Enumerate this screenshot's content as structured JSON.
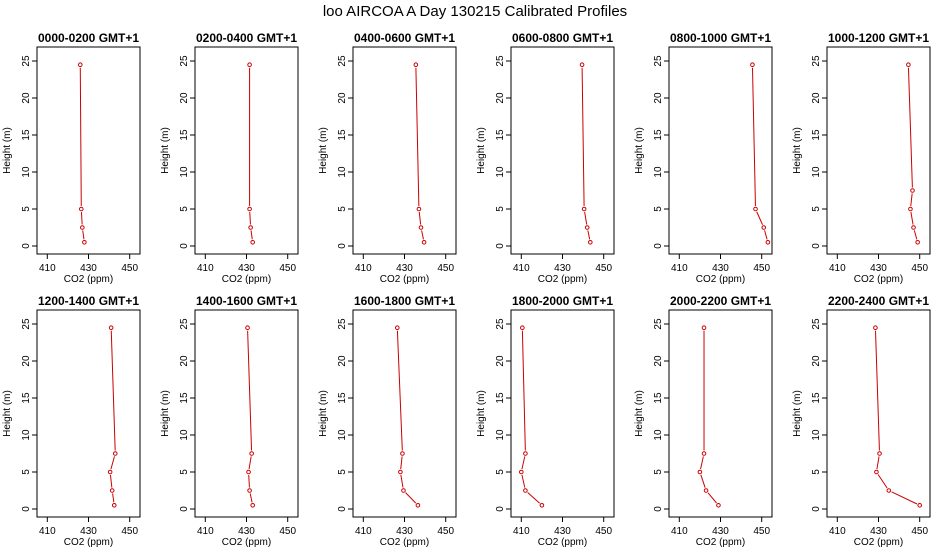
{
  "title": "loo AIRCOA A  Day 130215  Calibrated Profiles",
  "colors": {
    "series": "#cc0000",
    "axis": "#000000",
    "background": "#ffffff"
  },
  "chart_data": [
    {
      "type": "line",
      "title": "0000-0200 GMT+1",
      "xlabel": "CO2 (ppm)",
      "ylabel": "Height (m)",
      "xlim": [
        405,
        455
      ],
      "ylim": [
        0,
        25
      ],
      "xticks": [
        410,
        430,
        450
      ],
      "yticks": [
        0,
        5,
        10,
        15,
        20,
        25
      ],
      "points": [
        [
          428,
          0.5
        ],
        [
          427,
          2.5
        ],
        [
          426.5,
          5
        ],
        [
          426,
          24.5
        ]
      ]
    },
    {
      "type": "line",
      "title": "0200-0400 GMT+1",
      "xlabel": "CO2 (ppm)",
      "ylabel": "Height (m)",
      "xlim": [
        405,
        455
      ],
      "ylim": [
        0,
        25
      ],
      "xticks": [
        410,
        430,
        450
      ],
      "yticks": [
        0,
        5,
        10,
        15,
        20,
        25
      ],
      "points": [
        [
          433,
          0.5
        ],
        [
          432,
          2.5
        ],
        [
          431.5,
          5
        ],
        [
          431.5,
          24.5
        ]
      ]
    },
    {
      "type": "line",
      "title": "0400-0600 GMT+1",
      "xlabel": "CO2 (ppm)",
      "ylabel": "Height (m)",
      "xlim": [
        405,
        455
      ],
      "ylim": [
        0,
        25
      ],
      "xticks": [
        410,
        430,
        450
      ],
      "yticks": [
        0,
        5,
        10,
        15,
        20,
        25
      ],
      "points": [
        [
          439.5,
          0.5
        ],
        [
          438,
          2.5
        ],
        [
          437,
          5
        ],
        [
          435.5,
          24.5
        ]
      ]
    },
    {
      "type": "line",
      "title": "0600-0800 GMT+1",
      "xlabel": "CO2 (ppm)",
      "ylabel": "Height (m)",
      "xlim": [
        405,
        455
      ],
      "ylim": [
        0,
        25
      ],
      "xticks": [
        410,
        430,
        450
      ],
      "yticks": [
        0,
        5,
        10,
        15,
        20,
        25
      ],
      "points": [
        [
          443.5,
          0.5
        ],
        [
          442,
          2.5
        ],
        [
          440.5,
          5
        ],
        [
          439.5,
          24.5
        ]
      ]
    },
    {
      "type": "line",
      "title": "0800-1000 GMT+1",
      "xlabel": "CO2 (ppm)",
      "ylabel": "Height (m)",
      "xlim": [
        405,
        455
      ],
      "ylim": [
        0,
        25
      ],
      "xticks": [
        410,
        430,
        450
      ],
      "yticks": [
        0,
        5,
        10,
        15,
        20,
        25
      ],
      "points": [
        [
          453,
          0.5
        ],
        [
          451,
          2.5
        ],
        [
          447,
          5
        ],
        [
          445.5,
          24.5
        ]
      ]
    },
    {
      "type": "line",
      "title": "1000-1200 GMT+1",
      "xlabel": "CO2 (ppm)",
      "ylabel": "Height (m)",
      "xlim": [
        405,
        455
      ],
      "ylim": [
        0,
        25
      ],
      "xticks": [
        410,
        430,
        450
      ],
      "yticks": [
        0,
        5,
        10,
        15,
        20,
        25
      ],
      "points": [
        [
          449,
          0.5
        ],
        [
          447,
          2.5
        ],
        [
          445.5,
          5
        ],
        [
          446.5,
          7.5
        ],
        [
          444.5,
          24.5
        ]
      ]
    },
    {
      "type": "line",
      "title": "1200-1400 GMT+1",
      "xlabel": "CO2 (ppm)",
      "ylabel": "Height (m)",
      "xlim": [
        405,
        455
      ],
      "ylim": [
        0,
        25
      ],
      "xticks": [
        410,
        430,
        450
      ],
      "yticks": [
        0,
        5,
        10,
        15,
        20,
        25
      ],
      "points": [
        [
          442.5,
          0.5
        ],
        [
          441.5,
          2.5
        ],
        [
          440.5,
          5
        ],
        [
          443,
          7.5
        ],
        [
          441,
          24.5
        ]
      ]
    },
    {
      "type": "line",
      "title": "1400-1600 GMT+1",
      "xlabel": "CO2 (ppm)",
      "ylabel": "Height (m)",
      "xlim": [
        405,
        455
      ],
      "ylim": [
        0,
        25
      ],
      "xticks": [
        410,
        430,
        450
      ],
      "yticks": [
        0,
        5,
        10,
        15,
        20,
        25
      ],
      "points": [
        [
          433,
          0.5
        ],
        [
          431.5,
          2.5
        ],
        [
          431,
          5
        ],
        [
          432.5,
          7.5
        ],
        [
          430.5,
          24.5
        ]
      ]
    },
    {
      "type": "line",
      "title": "1600-1800 GMT+1",
      "xlabel": "CO2 (ppm)",
      "ylabel": "Height (m)",
      "xlim": [
        405,
        455
      ],
      "ylim": [
        0,
        25
      ],
      "xticks": [
        410,
        430,
        450
      ],
      "yticks": [
        0,
        5,
        10,
        15,
        20,
        25
      ],
      "points": [
        [
          436.5,
          0.5
        ],
        [
          429.5,
          2.5
        ],
        [
          428,
          5
        ],
        [
          429,
          7.5
        ],
        [
          426.5,
          24.5
        ]
      ]
    },
    {
      "type": "line",
      "title": "1800-2000 GMT+1",
      "xlabel": "CO2 (ppm)",
      "ylabel": "Height (m)",
      "xlim": [
        405,
        455
      ],
      "ylim": [
        0,
        25
      ],
      "xticks": [
        410,
        430,
        450
      ],
      "yticks": [
        0,
        5,
        10,
        15,
        20,
        25
      ],
      "points": [
        [
          420,
          0.5
        ],
        [
          412,
          2.5
        ],
        [
          410,
          5
        ],
        [
          412,
          7.5
        ],
        [
          410.5,
          24.5
        ]
      ]
    },
    {
      "type": "line",
      "title": "2000-2200 GMT+1",
      "xlabel": "CO2 (ppm)",
      "ylabel": "Height (m)",
      "xlim": [
        405,
        455
      ],
      "ylim": [
        0,
        25
      ],
      "xticks": [
        410,
        430,
        450
      ],
      "yticks": [
        0,
        5,
        10,
        15,
        20,
        25
      ],
      "points": [
        [
          429,
          0.5
        ],
        [
          423,
          2.5
        ],
        [
          420,
          5
        ],
        [
          422,
          7.5
        ],
        [
          422,
          24.5
        ]
      ]
    },
    {
      "type": "line",
      "title": "2200-2400 GMT+1",
      "xlabel": "CO2 (ppm)",
      "ylabel": "Height (m)",
      "xlim": [
        405,
        455
      ],
      "ylim": [
        0,
        25
      ],
      "xticks": [
        410,
        430,
        450
      ],
      "yticks": [
        0,
        5,
        10,
        15,
        20,
        25
      ],
      "points": [
        [
          450,
          0.5
        ],
        [
          435,
          2.5
        ],
        [
          429,
          5
        ],
        [
          430.5,
          7.5
        ],
        [
          428.5,
          24.5
        ]
      ]
    }
  ]
}
